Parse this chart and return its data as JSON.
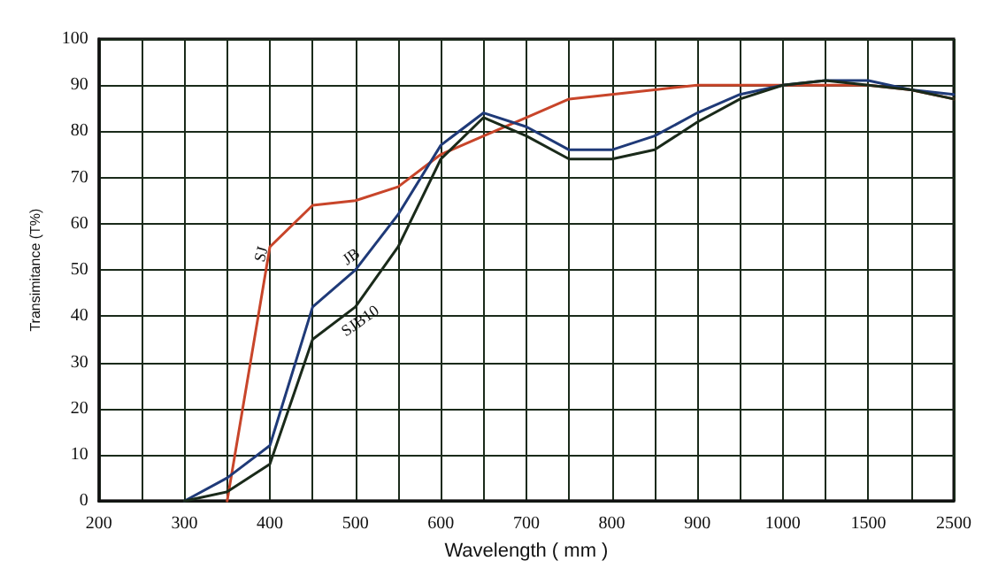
{
  "chart_data": {
    "type": "line",
    "xlabel": "Wavelength ( mm )",
    "ylabel": "Transimitance (T%)",
    "categories": [
      "200",
      null,
      "300",
      null,
      "400",
      null,
      "500",
      null,
      "600",
      null,
      "700",
      null,
      "800",
      null,
      "900",
      null,
      "1000",
      null,
      "1500",
      null,
      "2500"
    ],
    "series": [
      {
        "name": "SJ",
        "color": "#c8452a",
        "values": [
          null,
          null,
          null,
          0,
          55,
          64,
          65,
          68,
          75,
          79,
          83,
          87,
          88,
          89,
          90,
          90,
          90,
          90,
          90,
          89,
          87
        ]
      },
      {
        "name": "JB",
        "color": "#1f3a78",
        "values": [
          null,
          null,
          0,
          5,
          12,
          42,
          50,
          62,
          77,
          84,
          81,
          76,
          76,
          79,
          84,
          88,
          90,
          91,
          91,
          89,
          88
        ]
      },
      {
        "name": "SJB10",
        "color": "#1a2a1a",
        "values": [
          null,
          null,
          0,
          2,
          8,
          35,
          42,
          55,
          74,
          83,
          79,
          74,
          74,
          76,
          82,
          87,
          90,
          91,
          90,
          89,
          87
        ]
      }
    ],
    "ylim": [
      0,
      100
    ],
    "yticks": [
      0,
      10,
      20,
      30,
      40,
      50,
      60,
      70,
      80,
      90,
      100
    ],
    "grid": true,
    "legend": false,
    "marker": "none",
    "line_style": "solid"
  }
}
